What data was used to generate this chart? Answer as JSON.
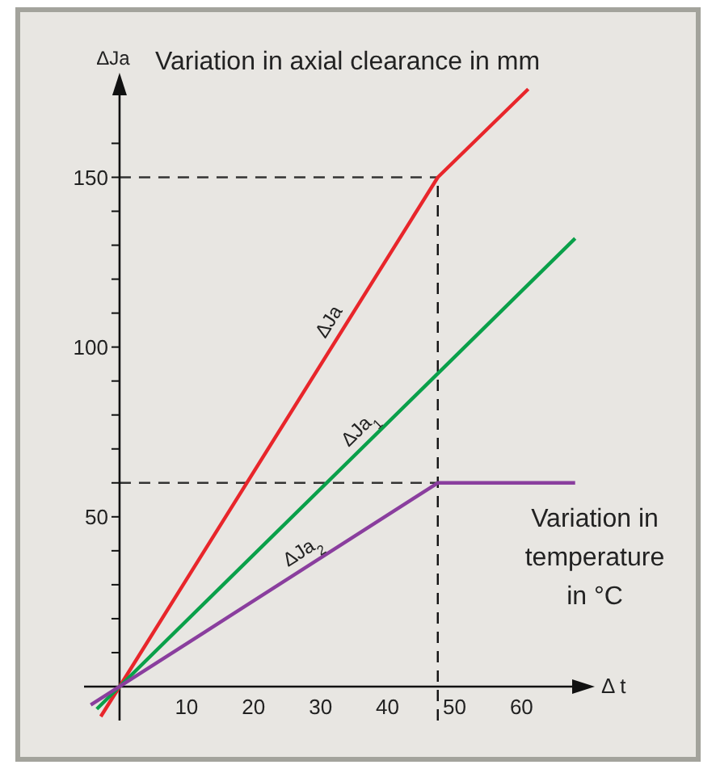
{
  "chart_data": {
    "type": "line",
    "title": "Variation in axial clearance in mm",
    "xlabel": "Δ t",
    "ylabel": "ΔJa",
    "annotations": [
      "Variation in temperature in °C"
    ],
    "xlim": [
      -5.3,
      69
    ],
    "ylim": [
      -10,
      177
    ],
    "xticks": [
      10,
      20,
      30,
      40,
      50,
      60
    ],
    "yticks": [
      {
        "value": 10,
        "label": null
      },
      {
        "value": 20,
        "label": null
      },
      {
        "value": 30,
        "label": null
      },
      {
        "value": 40,
        "label": null
      },
      50,
      {
        "value": 60,
        "label": null
      },
      {
        "value": 70,
        "label": null
      },
      {
        "value": 80,
        "label": null
      },
      {
        "value": 90,
        "label": null
      },
      100,
      {
        "value": 110,
        "label": null
      },
      {
        "value": 120,
        "label": null
      },
      {
        "value": 130,
        "label": null
      },
      {
        "value": 140,
        "label": null
      },
      150,
      {
        "value": 160,
        "label": null
      }
    ],
    "series": [
      {
        "name": "ΔJa",
        "color": "#e8262b",
        "x": [
          -2.8,
          0,
          47.5,
          61
        ],
        "values": [
          -8.8,
          0,
          150,
          176
        ]
      },
      {
        "name": "ΔJa$_{1}$",
        "color": "#0aa04a",
        "x": [
          -3.4,
          0,
          68
        ],
        "values": [
          -6.6,
          0,
          132
        ]
      },
      {
        "name": "ΔJa$_{2}$",
        "color": "#8a3e9e",
        "x": [
          -4.3,
          0,
          47.5,
          68
        ],
        "values": [
          -5.4,
          0,
          60,
          60
        ]
      }
    ],
    "ref_lines": [
      {
        "axis": "y",
        "value": 150,
        "line_style": "dashed",
        "color": "#333333"
      },
      {
        "axis": "y",
        "value": 60,
        "line_style": "dashed",
        "color": "#333333"
      },
      {
        "axis": "x",
        "value": 47.5,
        "line_style": "dashed",
        "color": "#111111"
      }
    ],
    "grid": false,
    "marker": "none",
    "line_style": "solid"
  }
}
